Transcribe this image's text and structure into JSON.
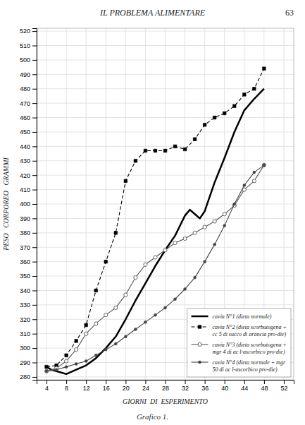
{
  "chart_data": {
    "type": "line",
    "title": "IL PROBLEMA ALIMENTARE",
    "annotations": [
      "63",
      "Grafico 1."
    ],
    "x_label": "GIORNI  DI  ESPERIMENTO",
    "y_label": "PESO   CORPOREO   GRAMMI",
    "xlim": [
      2,
      54
    ],
    "ylim": [
      278,
      522
    ],
    "xticks": [
      4,
      8,
      12,
      16,
      20,
      24,
      28,
      32,
      36,
      40,
      44,
      48,
      52
    ],
    "yticks": [
      280,
      290,
      300,
      310,
      320,
      330,
      340,
      350,
      360,
      370,
      380,
      390,
      400,
      410,
      420,
      430,
      440,
      450,
      460,
      470,
      480,
      490,
      500,
      510,
      520
    ],
    "grid": true,
    "legend": "lower right",
    "series": [
      {
        "name": "cavia N°1 (dieta normale)",
        "color": "#000000",
        "marker": "none",
        "line_style": "solid",
        "x": [
          4,
          5,
          6,
          7,
          8,
          10,
          12,
          14,
          16,
          18,
          20,
          22,
          24,
          26,
          28,
          30,
          32,
          33,
          34,
          35,
          36,
          38,
          40,
          42,
          44,
          46,
          48
        ],
        "values": [
          287,
          285,
          284,
          283,
          282,
          285,
          288,
          293,
          300,
          308,
          320,
          333,
          345,
          357,
          368,
          378,
          392,
          396,
          393,
          390,
          395,
          415,
          432,
          450,
          465,
          473,
          480
        ]
      },
      {
        "name": "cavia N°2 (dieta scorbutogena +\ncc 5 di succo di arancia pro-die)",
        "color": "#000000",
        "marker": "square",
        "line_style": "dashed",
        "x": [
          4,
          6,
          8,
          10,
          12,
          14,
          16,
          18,
          20,
          22,
          24,
          26,
          28,
          30,
          32,
          34,
          36,
          38,
          40,
          42,
          44,
          46,
          48
        ],
        "values": [
          287,
          288,
          295,
          305,
          316,
          340,
          360,
          380,
          416,
          430,
          437,
          437,
          437,
          440,
          438,
          445,
          455,
          460,
          463,
          468,
          476,
          480,
          494
        ]
      },
      {
        "name": "cavia N°3 (dieta scorbutogena +\nmgr 4 di ac l-ascorbico pro-die)",
        "color": "#555555",
        "marker": "circle-open",
        "line_style": "solid",
        "x": [
          4,
          6,
          8,
          10,
          12,
          14,
          16,
          18,
          20,
          22,
          24,
          26,
          28,
          30,
          32,
          34,
          36,
          38,
          40,
          42,
          44,
          46,
          48
        ],
        "values": [
          284,
          286,
          291,
          299,
          310,
          317,
          323,
          328,
          337,
          349,
          358,
          363,
          368,
          373,
          376,
          380,
          384,
          388,
          393,
          399,
          410,
          416,
          427
        ]
      },
      {
        "name": "cavia N°4 (dieta normale + mgr\n50 di ac l-ascorbico pro-die)",
        "color": "#444444",
        "marker": "circle",
        "line_style": "solid",
        "x": [
          4,
          6,
          8,
          10,
          12,
          14,
          16,
          18,
          20,
          22,
          24,
          26,
          28,
          30,
          32,
          34,
          36,
          38,
          40,
          42,
          44,
          46,
          48
        ],
        "values": [
          284,
          285,
          287,
          289,
          291,
          295,
          299,
          303,
          308,
          313,
          318,
          323,
          328,
          334,
          341,
          349,
          360,
          372,
          385,
          400,
          413,
          422,
          427
        ]
      }
    ]
  }
}
